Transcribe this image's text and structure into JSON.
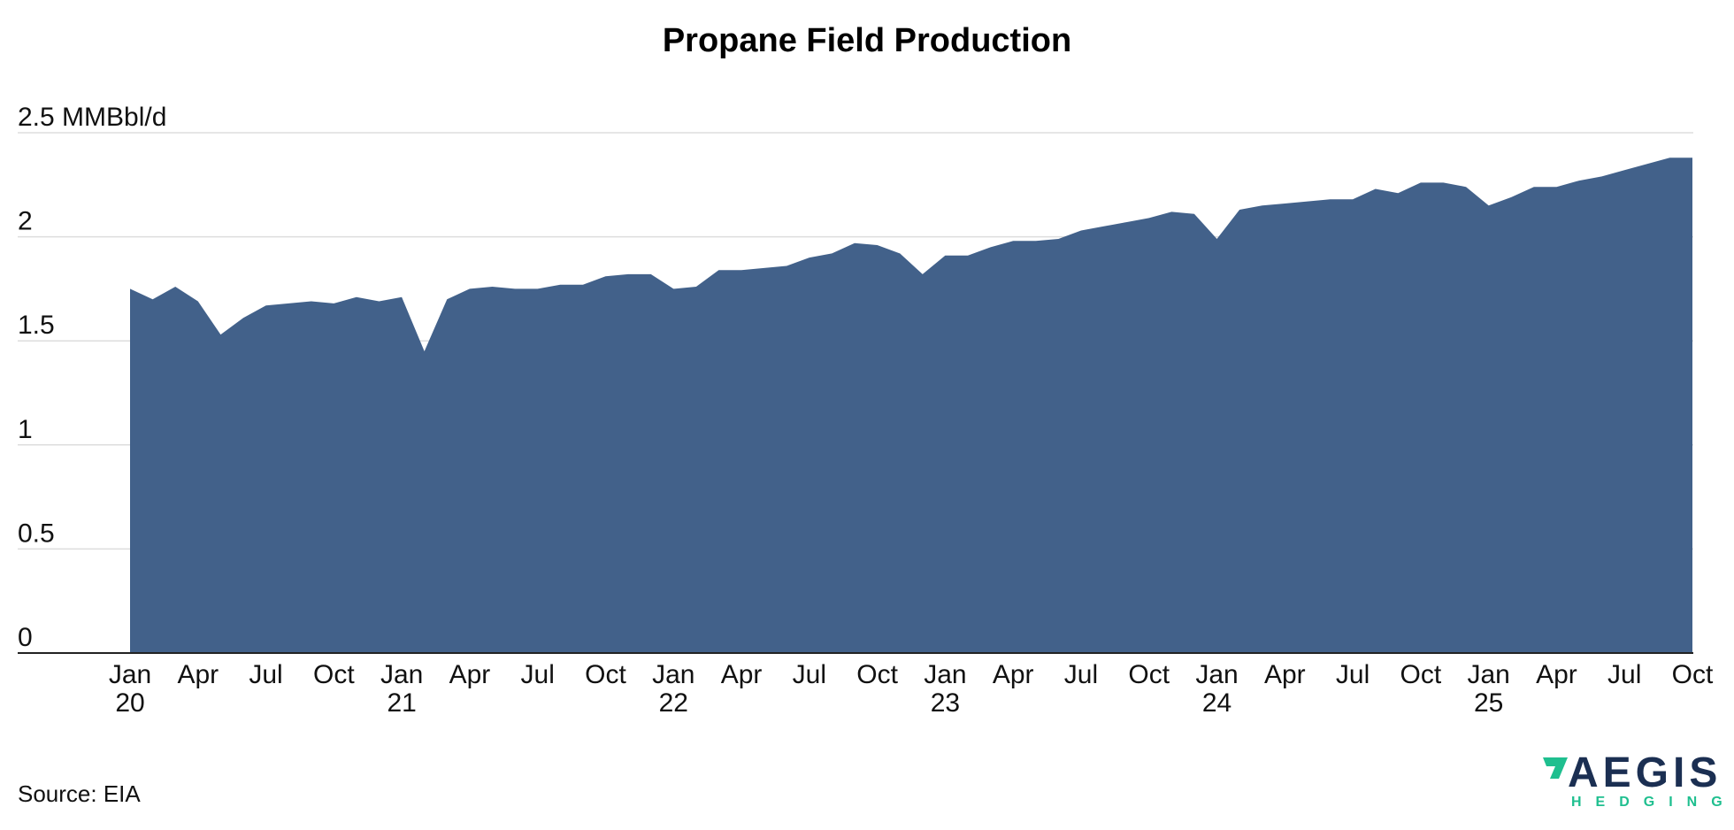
{
  "chart_data": {
    "type": "area",
    "title": "Propane Field Production",
    "unit_label": "MMBbl/d",
    "ylim": [
      0,
      2.5
    ],
    "yticks": [
      {
        "value": 0,
        "label": "0"
      },
      {
        "value": 0.5,
        "label": "0.5"
      },
      {
        "value": 1,
        "label": "1"
      },
      {
        "value": 1.5,
        "label": "1.5"
      },
      {
        "value": 2,
        "label": "2"
      },
      {
        "value": 2.5,
        "label": "2.5 MMBbl/d"
      }
    ],
    "xticks": [
      {
        "date": "2020-01",
        "line1": "Jan",
        "line2": "20"
      },
      {
        "date": "2020-04",
        "line1": "Apr",
        "line2": ""
      },
      {
        "date": "2020-07",
        "line1": "Jul",
        "line2": ""
      },
      {
        "date": "2020-10",
        "line1": "Oct",
        "line2": ""
      },
      {
        "date": "2021-01",
        "line1": "Jan",
        "line2": "21"
      },
      {
        "date": "2021-04",
        "line1": "Apr",
        "line2": ""
      },
      {
        "date": "2021-07",
        "line1": "Jul",
        "line2": ""
      },
      {
        "date": "2021-10",
        "line1": "Oct",
        "line2": ""
      },
      {
        "date": "2022-01",
        "line1": "Jan",
        "line2": "22"
      },
      {
        "date": "2022-04",
        "line1": "Apr",
        "line2": ""
      },
      {
        "date": "2022-07",
        "line1": "Jul",
        "line2": ""
      },
      {
        "date": "2022-10",
        "line1": "Oct",
        "line2": ""
      },
      {
        "date": "2023-01",
        "line1": "Jan",
        "line2": "23"
      },
      {
        "date": "2023-04",
        "line1": "Apr",
        "line2": ""
      },
      {
        "date": "2023-07",
        "line1": "Jul",
        "line2": ""
      },
      {
        "date": "2023-10",
        "line1": "Oct",
        "line2": ""
      },
      {
        "date": "2024-01",
        "line1": "Jan",
        "line2": "24"
      },
      {
        "date": "2024-04",
        "line1": "Apr",
        "line2": ""
      },
      {
        "date": "2024-07",
        "line1": "Jul",
        "line2": ""
      },
      {
        "date": "2024-10",
        "line1": "Oct",
        "line2": ""
      },
      {
        "date": "2025-01",
        "line1": "Jan",
        "line2": "25"
      },
      {
        "date": "2025-04",
        "line1": "Apr",
        "line2": ""
      },
      {
        "date": "2025-07",
        "line1": "Jul",
        "line2": ""
      },
      {
        "date": "2025-10",
        "line1": "Oct",
        "line2": ""
      }
    ],
    "x": [
      "2020-01",
      "2020-02",
      "2020-03",
      "2020-04",
      "2020-05",
      "2020-06",
      "2020-07",
      "2020-08",
      "2020-09",
      "2020-10",
      "2020-11",
      "2020-12",
      "2021-01",
      "2021-02",
      "2021-03",
      "2021-04",
      "2021-05",
      "2021-06",
      "2021-07",
      "2021-08",
      "2021-09",
      "2021-10",
      "2021-11",
      "2021-12",
      "2022-01",
      "2022-02",
      "2022-03",
      "2022-04",
      "2022-05",
      "2022-06",
      "2022-07",
      "2022-08",
      "2022-09",
      "2022-10",
      "2022-11",
      "2022-12",
      "2023-01",
      "2023-02",
      "2023-03",
      "2023-04",
      "2023-05",
      "2023-06",
      "2023-07",
      "2023-08",
      "2023-09",
      "2023-10",
      "2023-11",
      "2023-12",
      "2024-01",
      "2024-02",
      "2024-03",
      "2024-04",
      "2024-05",
      "2024-06",
      "2024-07",
      "2024-08",
      "2024-09",
      "2024-10",
      "2024-11",
      "2024-12",
      "2025-01",
      "2025-02",
      "2025-03",
      "2025-04",
      "2025-05",
      "2025-06",
      "2025-07",
      "2025-08",
      "2025-09",
      "2025-10"
    ],
    "series": [
      {
        "values": [
          1.75,
          1.7,
          1.76,
          1.69,
          1.53,
          1.61,
          1.67,
          1.68,
          1.69,
          1.68,
          1.71,
          1.69,
          1.71,
          1.45,
          1.7,
          1.75,
          1.76,
          1.75,
          1.75,
          1.77,
          1.77,
          1.81,
          1.82,
          1.82,
          1.75,
          1.76,
          1.84,
          1.84,
          1.85,
          1.86,
          1.9,
          1.92,
          1.97,
          1.96,
          1.92,
          1.82,
          1.91,
          1.91,
          1.95,
          1.98,
          1.98,
          1.99,
          2.03,
          2.05,
          2.07,
          2.09,
          2.12,
          2.11,
          1.99,
          2.13,
          2.15,
          2.16,
          2.17,
          2.18,
          2.18,
          2.23,
          2.21,
          2.26,
          2.26,
          2.24,
          2.15,
          2.19,
          2.24,
          2.24,
          2.27,
          2.29,
          2.32,
          2.35,
          2.38,
          2.38
        ]
      }
    ],
    "fill_color": "#42618a",
    "grid": true,
    "legend": "none"
  },
  "source_text": "Source: EIA",
  "logo": {
    "main": "AEGIS",
    "sub": "HEDGING",
    "primary_color": "#1b2f52",
    "accent_color": "#1fbf8f"
  }
}
